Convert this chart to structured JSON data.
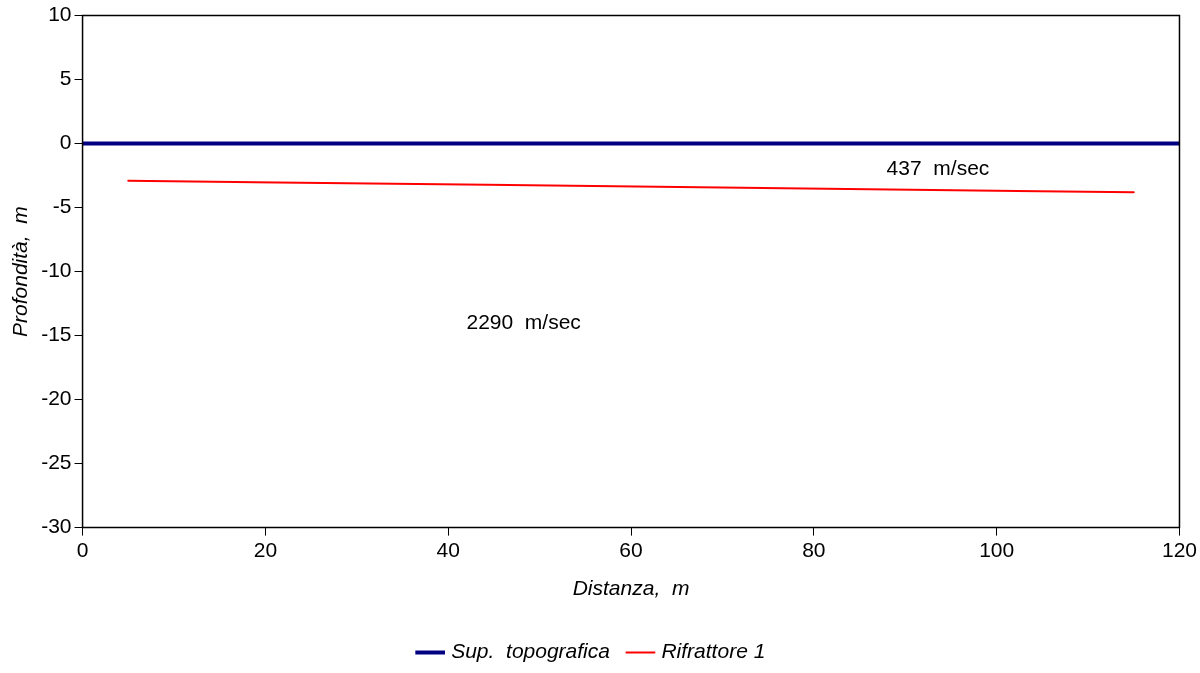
{
  "chart_data": {
    "type": "line",
    "xlabel": "Distanza,  m",
    "ylabel": "Profondità,  m",
    "xlim": [
      0,
      120
    ],
    "xticks": [
      0,
      20,
      40,
      60,
      80,
      100,
      120
    ],
    "ylim": [
      -30,
      10
    ],
    "yticks": [
      -30,
      -25,
      -20,
      -15,
      -10,
      -5,
      0,
      5,
      10
    ],
    "grid": false,
    "legend": "bottom",
    "marker": "none",
    "line_style": "solid",
    "series": [
      {
        "name": "Sup.  topografica",
        "color": "#000080",
        "x": [
          0,
          120
        ],
        "values": [
          0,
          0
        ]
      },
      {
        "name": "Rifrattore 1",
        "color": "#ff0000",
        "x": [
          5,
          115
        ],
        "values": [
          -2.9,
          -3.8
        ]
      }
    ],
    "annotations": [
      "437  m/sec",
      "2290  m/sec"
    ]
  }
}
